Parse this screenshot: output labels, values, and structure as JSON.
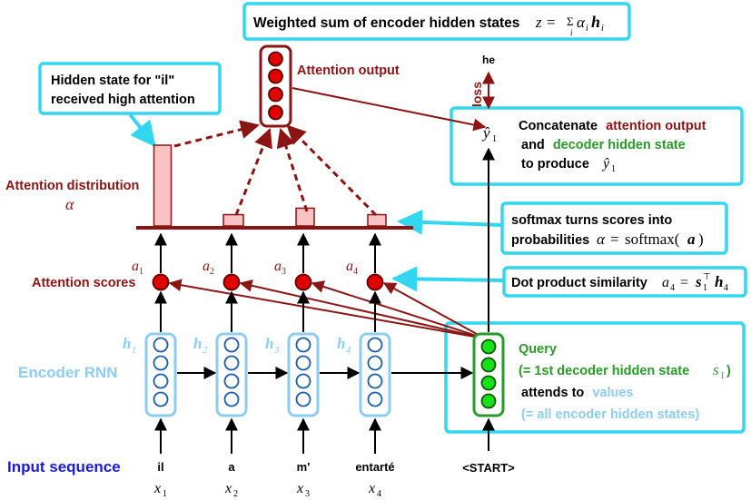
{
  "top_box": {
    "text": "Weighted sum of encoder hidden states",
    "formula_lhs": "z =",
    "formula_sum": "Σ",
    "formula_sum_sub": "i",
    "formula_alpha": "α",
    "formula_alpha_sub": "i",
    "formula_h": "h",
    "formula_h_sub": "i"
  },
  "attention_output": {
    "label": "Attention output"
  },
  "hidden_box": {
    "line1": "Hidden state for \"il\"",
    "line2": "received high attention"
  },
  "attention_distribution": {
    "label": "Attention distribution",
    "symbol": "α",
    "values": [
      1.0,
      0.14,
      0.22,
      0.14
    ]
  },
  "attention_scores": {
    "label": "Attention scores"
  },
  "scores": [
    {
      "sym": "a",
      "sub": "1"
    },
    {
      "sym": "a",
      "sub": "2"
    },
    {
      "sym": "a",
      "sub": "3"
    },
    {
      "sym": "a",
      "sub": "4"
    }
  ],
  "encoder": {
    "label": "Encoder RNN",
    "hidden": [
      {
        "sym": "h",
        "sub": "1"
      },
      {
        "sym": "h",
        "sub": "2"
      },
      {
        "sym": "h",
        "sub": "3"
      },
      {
        "sym": "h",
        "sub": "4"
      }
    ]
  },
  "input_sequence": {
    "label": "Input sequence",
    "words": [
      "il",
      "a",
      "m'",
      "entarté"
    ],
    "vars": [
      {
        "sym": "x",
        "sub": "1"
      },
      {
        "sym": "x",
        "sub": "2"
      },
      {
        "sym": "x",
        "sub": "3"
      },
      {
        "sym": "x",
        "sub": "4"
      }
    ]
  },
  "decoder": {
    "start_token": "<START>",
    "output_word": "he",
    "loss_label": "loss",
    "yhat": "ŷ",
    "yhat_sub": "1"
  },
  "concat_box": {
    "line1_a": "Concatenate",
    "line1_b": "attention output",
    "line2_a": "and",
    "line2_b": "decoder hidden state",
    "line3_a": "to produce",
    "line3_sym": "ŷ",
    "line3_sub": "1"
  },
  "softmax_box": {
    "line1": "softmax turns scores into",
    "line2": "probabilities",
    "formula_alpha": "α",
    "formula_eq": "=",
    "formula_fn": "softmax(",
    "formula_arg": "a",
    "formula_close": ")"
  },
  "dot_box": {
    "text": "Dot product similarity",
    "f_a": "a",
    "f_a_sub": "4",
    "f_eq": "=",
    "f_s": "s",
    "f_s_sub": "1",
    "f_s_sup": "⊤",
    "f_h": "h",
    "f_h_sub": "4"
  },
  "query_box": {
    "line1": "Query",
    "line2_a": "(= 1st decoder hidden state",
    "line2_sym": "s",
    "line2_sub": "1",
    "line2_close": ")",
    "line3_a": "attends to",
    "line3_b": "values",
    "line4": "(= all encoder hidden states)"
  },
  "colors": {
    "cyan": "#33d6ef",
    "darkred": "#8b1414",
    "red": "#e00000",
    "lightblue": "#8ecdf2",
    "green": "#2a9a2a",
    "green_fill": "#17e217",
    "pink": "#f9c3c3",
    "blue": "#1a1adb"
  }
}
